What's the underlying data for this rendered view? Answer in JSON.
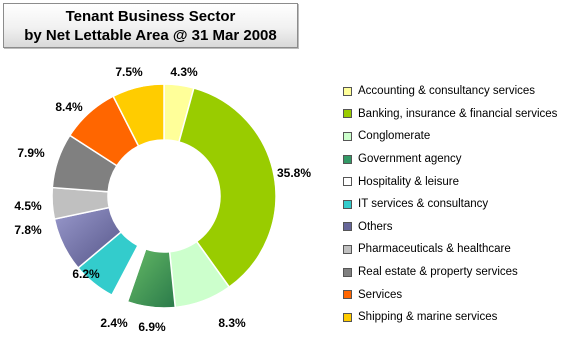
{
  "chart_data": {
    "type": "donut",
    "title_line1": "Tenant Business Sector",
    "title_line2": "by Net Lettable Area @ 31 Mar 2008",
    "series": [
      {
        "name": "Accounting & consultancy services",
        "value": 4.3,
        "label": "4.3%",
        "color": "#ffff99"
      },
      {
        "name": "Banking, insurance & financial services",
        "value": 35.8,
        "label": "35.8%",
        "color": "#99cc00"
      },
      {
        "name": "Conglomerate",
        "value": 8.3,
        "label": "8.3%",
        "color": "#ccffcc"
      },
      {
        "name": "Government agency",
        "value": 6.9,
        "label": "6.9%",
        "color": "#339966"
      },
      {
        "name": "Hospitality & leisure",
        "value": 2.4,
        "label": "2.4%",
        "color": "#ffffff"
      },
      {
        "name": "IT services & consultancy",
        "value": 6.2,
        "label": "6.2%",
        "color": "#33cccc"
      },
      {
        "name": "Others",
        "value": 7.8,
        "label": "7.8%",
        "color": "#666699"
      },
      {
        "name": "Pharmaceuticals & healthcare",
        "value": 4.5,
        "label": "4.5%",
        "color": "#c0c0c0"
      },
      {
        "name": "Real estate & property services",
        "value": 7.9,
        "label": "7.9%",
        "color": "#808080"
      },
      {
        "name": "Services",
        "value": 8.4,
        "label": "8.4%",
        "color": "#ff6600"
      },
      {
        "name": "Shipping & marine services",
        "value": 7.5,
        "label": "7.5%",
        "color": "#ffcc00"
      }
    ]
  }
}
